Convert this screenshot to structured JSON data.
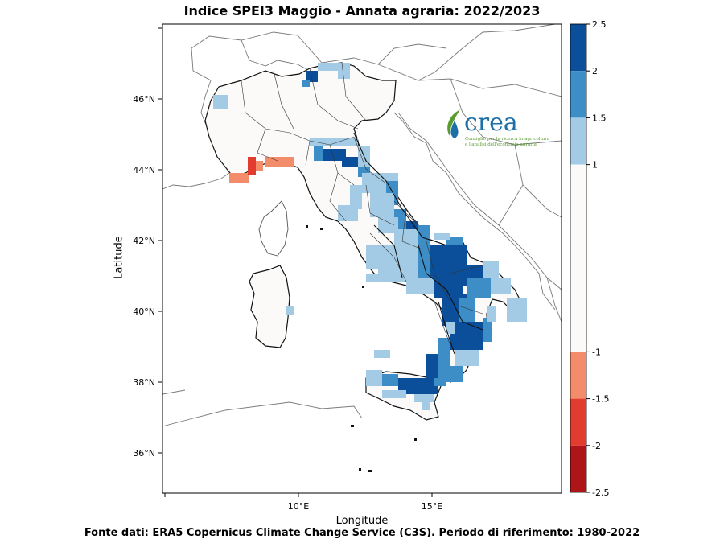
{
  "title": "Indice SPEI3 Maggio - Annata agraria: 2022/2023",
  "footer": "Fonte dati: ERA5 Copernicus Climate Change Service (C3S). Periodo di riferimento: 1980-2022",
  "axes": {
    "xlabel": "Longitude",
    "ylabel": "Latitude",
    "xticks": [
      {
        "value": 10,
        "label": "10°E"
      },
      {
        "value": 15,
        "label": "15°E"
      }
    ],
    "yticks": [
      {
        "value": 46,
        "label": "46°N"
      },
      {
        "value": 44,
        "label": "44°N"
      },
      {
        "value": 42,
        "label": "42°N"
      },
      {
        "value": 40,
        "label": "40°N"
      },
      {
        "value": 38,
        "label": "38°N"
      },
      {
        "value": 36,
        "label": "36°N"
      }
    ],
    "xlim": [
      5,
      20
    ],
    "ylim": [
      35,
      48
    ]
  },
  "logo": {
    "name": "crea",
    "line1": "Consiglio per la ricerca in agricoltura",
    "line2": "e l'analisi dell'economia agraria"
  },
  "colorbar": {
    "labels": [
      "2.5",
      "2",
      "1.5",
      "1",
      "-1",
      "-1.5",
      "-2",
      "-2.5"
    ],
    "bins": [
      {
        "from": 2,
        "to": 2.5,
        "color": "#0b4f9b"
      },
      {
        "from": 1.5,
        "to": 2,
        "color": "#3d8ec7"
      },
      {
        "from": 1,
        "to": 1.5,
        "color": "#a3cbe5"
      },
      {
        "from": -1,
        "to": 1,
        "color": "#fcf9f9"
      },
      {
        "from": -1.5,
        "to": -1,
        "color": "#f38c6a"
      },
      {
        "from": -2,
        "to": -1.5,
        "color": "#e23c2f"
      },
      {
        "from": -2.5,
        "to": -2,
        "color": "#ad1519"
      }
    ]
  },
  "colors": {
    "wet_extreme": "#0b4f9b",
    "wet_severe": "#3d8ec7",
    "wet_moderate": "#a3cbe5",
    "normal": "#fcf9f9",
    "dry_moderate": "#f38c6a",
    "dry_severe": "#e23c2f",
    "dry_extreme": "#ad1519",
    "logo_green": "#5a9a2e",
    "logo_blue": "#1d6fa8"
  }
}
